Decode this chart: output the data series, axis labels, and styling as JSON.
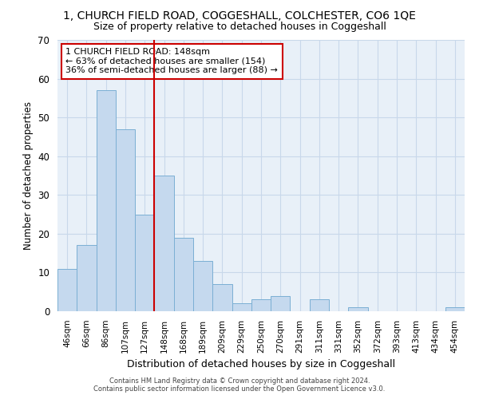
{
  "title1": "1, CHURCH FIELD ROAD, COGGESHALL, COLCHESTER, CO6 1QE",
  "title2": "Size of property relative to detached houses in Coggeshall",
  "xlabel": "Distribution of detached houses by size in Coggeshall",
  "ylabel": "Number of detached properties",
  "categories": [
    "46sqm",
    "66sqm",
    "86sqm",
    "107sqm",
    "127sqm",
    "148sqm",
    "168sqm",
    "189sqm",
    "209sqm",
    "229sqm",
    "250sqm",
    "270sqm",
    "291sqm",
    "311sqm",
    "331sqm",
    "352sqm",
    "372sqm",
    "393sqm",
    "413sqm",
    "434sqm",
    "454sqm"
  ],
  "values": [
    11,
    17,
    57,
    47,
    25,
    35,
    19,
    13,
    7,
    2,
    3,
    4,
    0,
    3,
    0,
    1,
    0,
    0,
    0,
    0,
    1
  ],
  "bar_color": "#c5d9ee",
  "bar_edge_color": "#7bafd4",
  "vline_x": 4.5,
  "vline_color": "#cc0000",
  "annotation_text": "1 CHURCH FIELD ROAD: 148sqm\n← 63% of detached houses are smaller (154)\n36% of semi-detached houses are larger (88) →",
  "annotation_box_color": "#ffffff",
  "annotation_box_edge": "#cc0000",
  "grid_color": "#c8d8ea",
  "bg_color": "#e8f0f8",
  "ylim": [
    0,
    70
  ],
  "yticks": [
    0,
    10,
    20,
    30,
    40,
    50,
    60,
    70
  ],
  "footer1": "Contains HM Land Registry data © Crown copyright and database right 2024.",
  "footer2": "Contains public sector information licensed under the Open Government Licence v3.0."
}
